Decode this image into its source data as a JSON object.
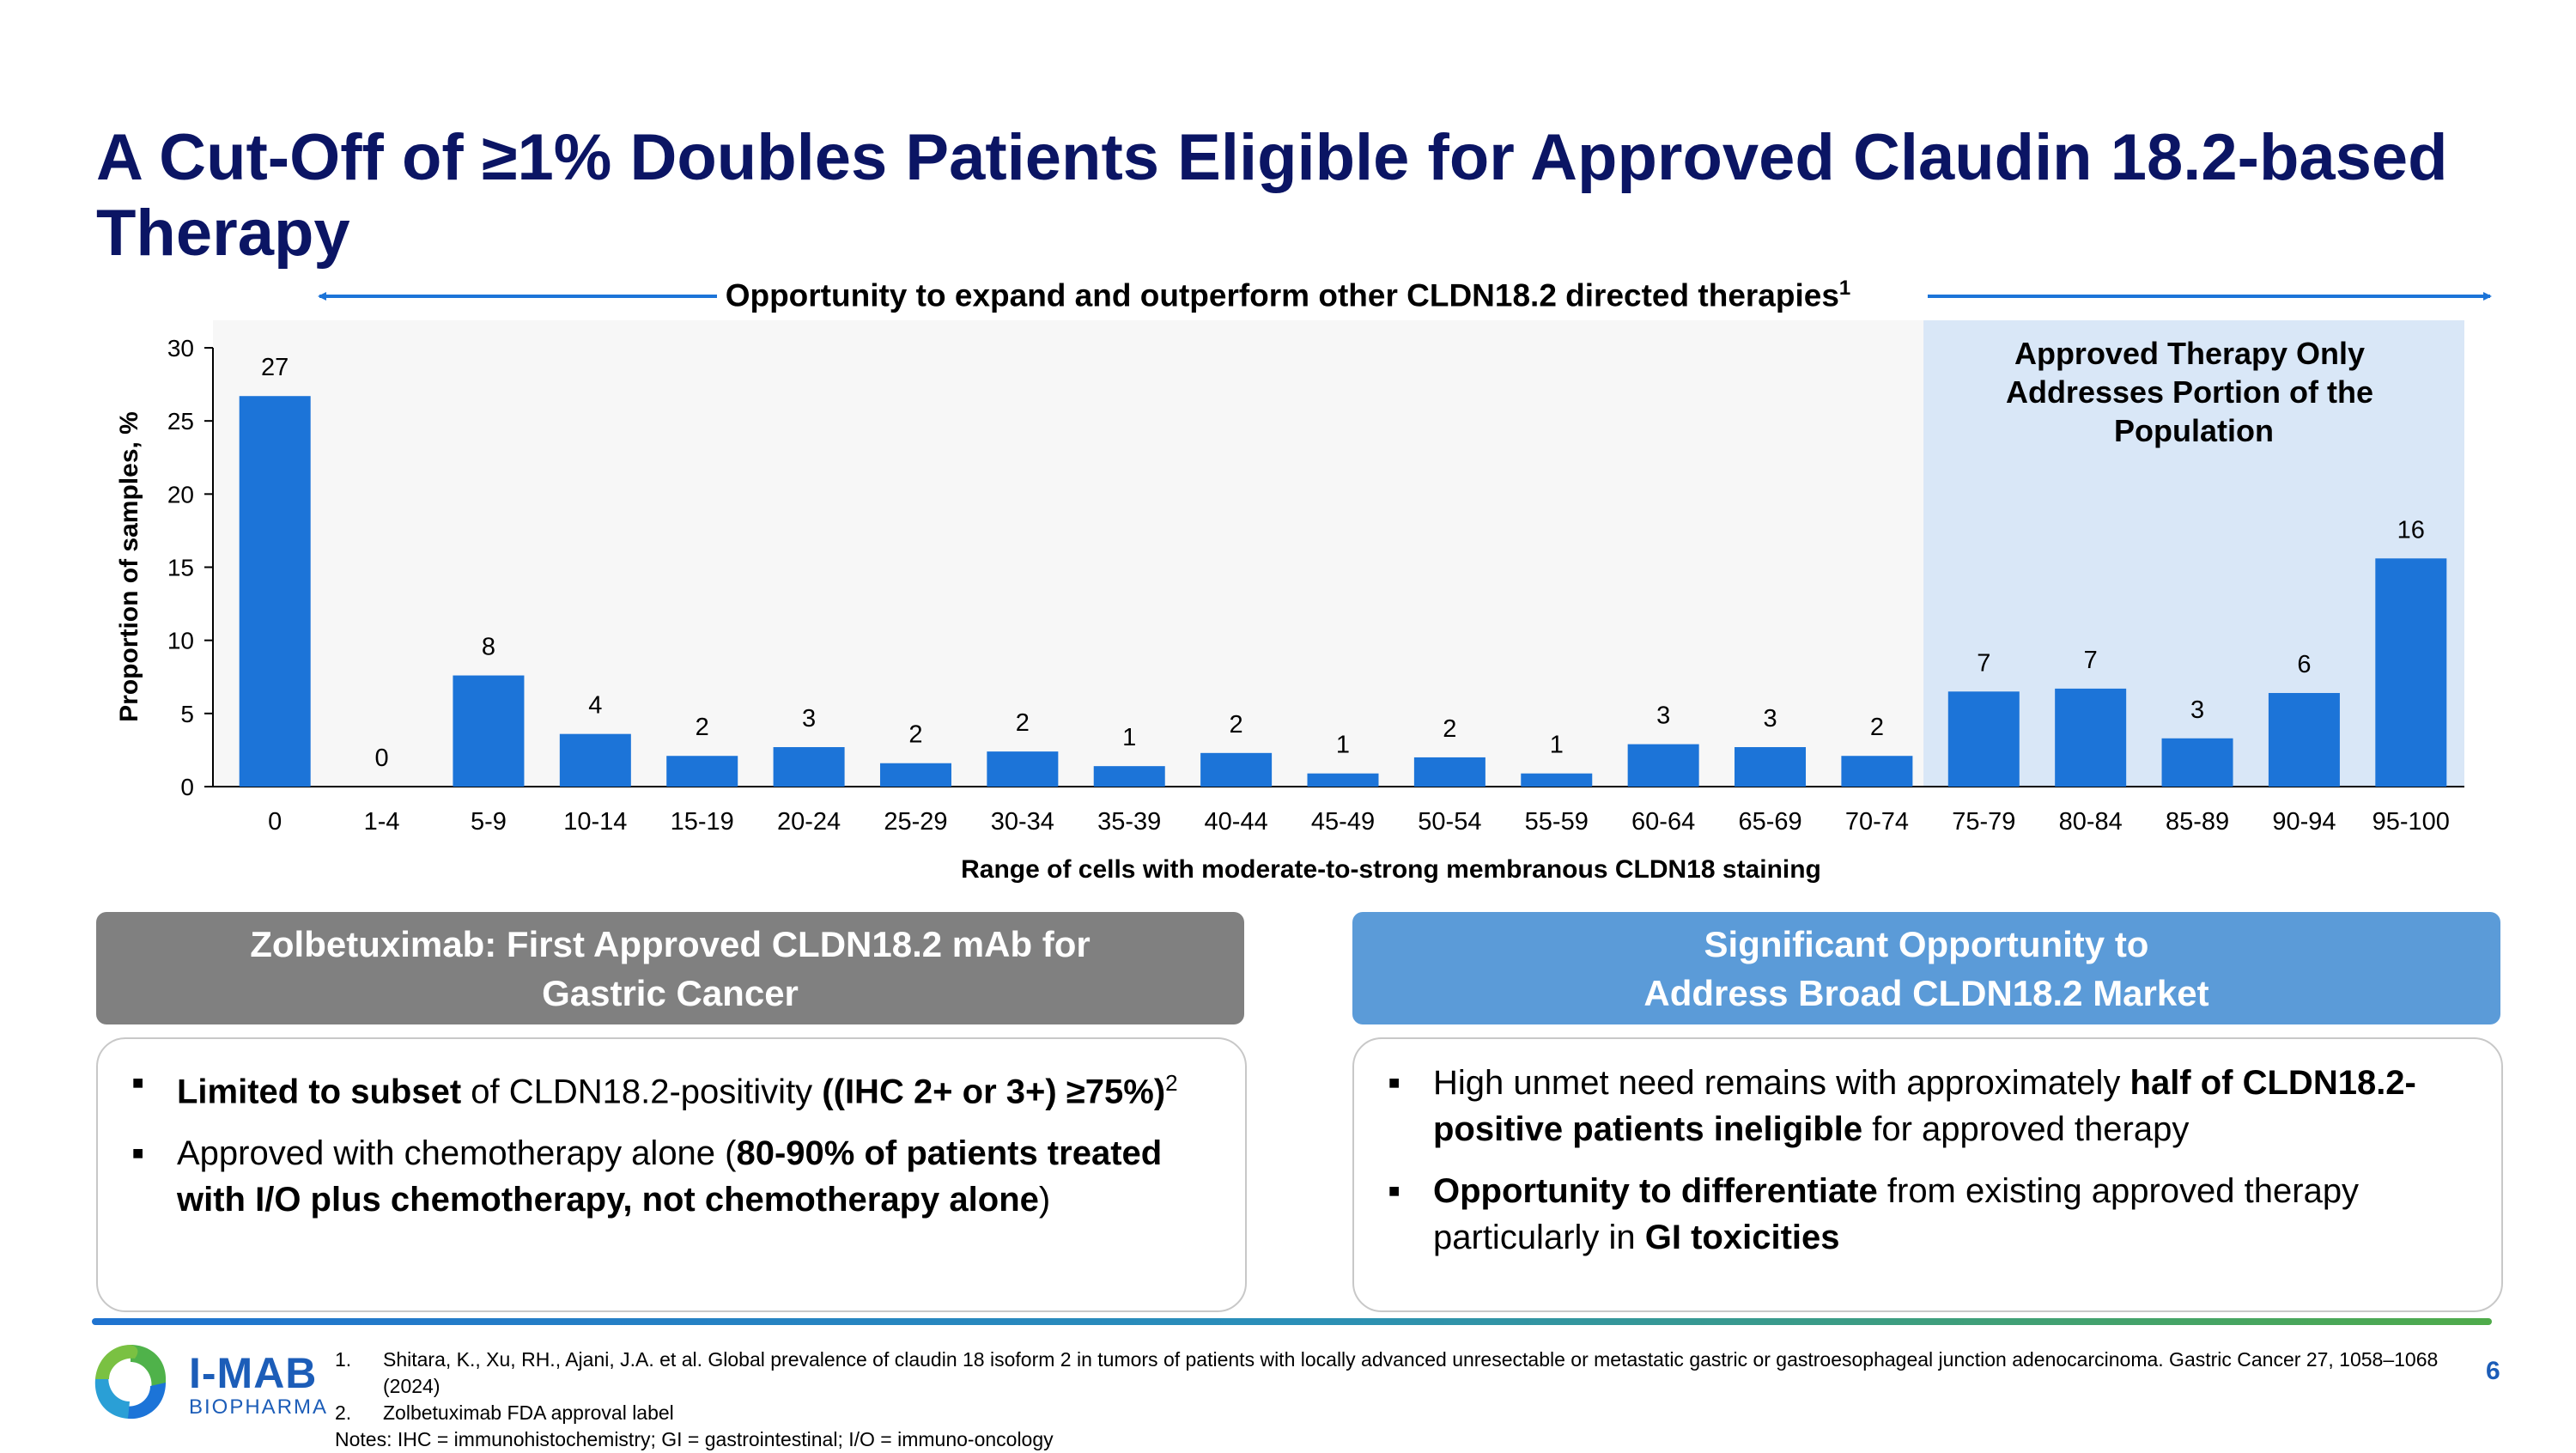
{
  "slide": {
    "title": "A Cut-Off of ≥1% Doubles Patients Eligible for Approved Claudin 18.2-based Therapy",
    "banner": "Opportunity to expand and outperform other CLDN18.2 directed therapies",
    "banner_sup": "1",
    "highlight_text": [
      "Approved Therapy Only",
      "Addresses Portion of the",
      "Population"
    ],
    "page_number": "6"
  },
  "colors": {
    "title": "#0b1564",
    "bar": "#1c74d8",
    "highlight_bg": "#d9e7f7",
    "plot_bg": "#f7f7f7",
    "left_header": "#808080",
    "right_header": "#5b9bd8",
    "accent_blue": "#1c5db8"
  },
  "chart_data": {
    "type": "bar",
    "ylabel": "Proportion of samples, %",
    "xlabel": "Range of cells with moderate-to-strong membranous CLDN18 staining",
    "ylim": [
      0,
      30
    ],
    "yticks": [
      0,
      5,
      10,
      15,
      20,
      25,
      30
    ],
    "categories": [
      "0",
      "1-4",
      "5-9",
      "10-14",
      "15-19",
      "20-24",
      "25-29",
      "30-34",
      "35-39",
      "40-44",
      "45-49",
      "50-54",
      "55-59",
      "60-64",
      "65-69",
      "70-74",
      "75-79",
      "80-84",
      "85-89",
      "90-94",
      "95-100"
    ],
    "values": [
      26.7,
      0,
      7.6,
      3.6,
      2.1,
      2.7,
      1.6,
      2.4,
      1.4,
      2.3,
      0.9,
      2.0,
      0.9,
      2.9,
      2.7,
      2.1,
      6.5,
      6.7,
      3.3,
      6.4,
      15.6
    ],
    "data_labels": [
      "27",
      "0",
      "8",
      "4",
      "2",
      "3",
      "2",
      "2",
      "1",
      "2",
      "1",
      "2",
      "1",
      "3",
      "3",
      "2",
      "7",
      "7",
      "3",
      "6",
      "16"
    ],
    "highlight_range": [
      "75-79",
      "95-100"
    ],
    "grid": false
  },
  "left_box": {
    "header_line1": "Zolbetuximab: First Approved CLDN18.2 mAb for",
    "header_line2": "Gastric Cancer",
    "b1_bold": "Limited to subset",
    "b1_text": " of CLDN18.2-positivity ",
    "b1_bold2": "((IHC 2+ or 3+) ≥75%)",
    "b1_sup": "2",
    "b2_text": "Approved with chemotherapy alone (",
    "b2_bold": "80-90% of patients treated with I/O plus chemotherapy, not chemotherapy alone",
    "b2_end": ")"
  },
  "right_box": {
    "header_line1": "Significant Opportunity to",
    "header_line2": "Address Broad CLDN18.2 Market",
    "b1_text": "High unmet need remains with approximately ",
    "b1_bold": "half of CLDN18.2-positive patients ineligible",
    "b1_end": " for approved therapy",
    "b2_bold": "Opportunity to differentiate",
    "b2_text": " from existing approved therapy particularly in ",
    "b2_bold2": "GI toxicities"
  },
  "footnotes": {
    "n1": "1.",
    "f1": "Shitara, K., Xu, RH., Ajani, J.A. et al. Global prevalence of claudin 18 isoform 2 in tumors of patients with locally advanced unresectable or metastatic gastric or gastroesophageal junction adenocarcinoma. Gastric Cancer 27, 1058–1068 (2024)",
    "n2": "2.",
    "f2": "Zolbetuximab FDA approval label",
    "notes": "Notes: IHC = immunohistochemistry; GI = gastrointestinal; I/O = immuno-oncology"
  },
  "logo": {
    "name": "I-MAB",
    "sub": "BIOPHARMA"
  }
}
